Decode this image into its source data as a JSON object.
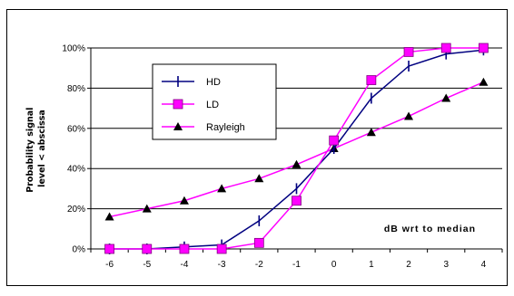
{
  "chart_data": {
    "type": "line",
    "x": [
      -6,
      -5,
      -4,
      -3,
      -2,
      -1,
      0,
      1,
      2,
      3,
      4
    ],
    "x_tick_labels": [
      "-6",
      "-5",
      "-4",
      "-3",
      "-2",
      "-1",
      "0",
      "1",
      "2",
      "3",
      "4"
    ],
    "y_tick_labels": [
      "0%",
      "20%",
      "40%",
      "60%",
      "80%",
      "100%"
    ],
    "ylim": [
      0,
      100
    ],
    "ylabel_lines": [
      "Probability signal",
      "level < abscissa"
    ],
    "annotation": "dB wrt to median",
    "grid": "horizontal",
    "legend_position": "upper-left",
    "series": [
      {
        "name": "HD",
        "color": "#000080",
        "marker": "vertical-tick",
        "values": [
          0,
          0,
          1,
          2,
          14,
          30,
          50,
          75,
          91,
          97,
          99
        ]
      },
      {
        "name": "LD",
        "color": "#ff00ff",
        "marker": "square",
        "values": [
          0,
          0,
          0,
          0,
          3,
          24,
          54,
          84,
          98,
          100,
          100
        ]
      },
      {
        "name": "Rayleigh",
        "color": "#ff00ff",
        "marker_color": "#000000",
        "marker": "triangle",
        "values": [
          16,
          20,
          24,
          30,
          35,
          42,
          50,
          58,
          66,
          75,
          83
        ]
      }
    ]
  }
}
